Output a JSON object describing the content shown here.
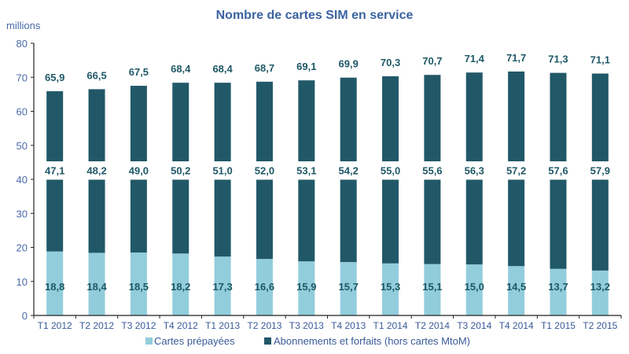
{
  "chart_data": {
    "type": "bar",
    "stacked": true,
    "title": "Nombre de cartes SIM en service",
    "ylabel": "millions",
    "xlabel": "",
    "ylim": [
      0,
      80
    ],
    "yticks": [
      0,
      10,
      20,
      30,
      40,
      50,
      60,
      70,
      80
    ],
    "grid": false,
    "legend_position": "bottom",
    "categories": [
      "T1 2012",
      "T2 2012",
      "T3 2012",
      "T4 2012",
      "T1 2013",
      "T2 2013",
      "T3 2013",
      "T4 2013",
      "T1 2014",
      "T2 2014",
      "T3 2014",
      "T4 2014",
      "T1 2015",
      "T2 2015"
    ],
    "series": [
      {
        "name": "Cartes prépayées",
        "color": "#92cddc",
        "values": [
          18.8,
          18.4,
          18.5,
          18.2,
          17.3,
          16.6,
          15.9,
          15.7,
          15.3,
          15.1,
          15.0,
          14.5,
          13.7,
          13.2
        ],
        "labels": [
          "18,8",
          "18,4",
          "18,5",
          "18,2",
          "17,3",
          "16,6",
          "15,9",
          "15,7",
          "15,3",
          "15,1",
          "15,0",
          "14,5",
          "13,7",
          "13,2"
        ]
      },
      {
        "name": "Abonnements et forfaits (hors cartes MtoM)",
        "color": "#215868",
        "values": [
          47.1,
          48.2,
          49.0,
          50.2,
          51.0,
          52.0,
          53.1,
          54.2,
          55.0,
          55.6,
          56.3,
          57.2,
          57.6,
          57.9
        ],
        "labels": [
          "47,1",
          "48,2",
          "49,0",
          "50,2",
          "51,0",
          "52,0",
          "53,1",
          "54,2",
          "55,0",
          "55,6",
          "56,3",
          "57,2",
          "57,6",
          "57,9"
        ]
      }
    ],
    "totals": [
      65.9,
      66.5,
      67.5,
      68.4,
      68.4,
      68.7,
      69.1,
      69.9,
      70.3,
      70.7,
      71.4,
      71.7,
      71.3,
      71.1
    ],
    "total_labels": [
      "65,9",
      "66,5",
      "67,5",
      "68,4",
      "68,4",
      "68,7",
      "69,1",
      "69,9",
      "70,3",
      "70,7",
      "71,4",
      "71,7",
      "71,3",
      "71,1"
    ]
  }
}
